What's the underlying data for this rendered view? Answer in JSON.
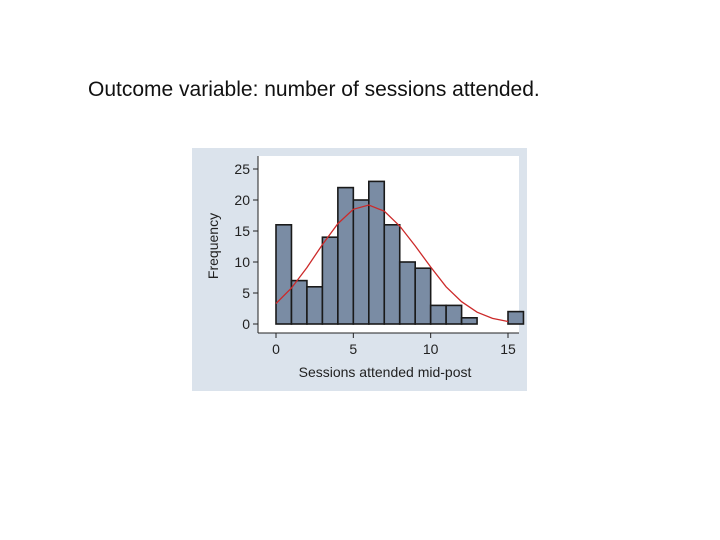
{
  "heading": "Outcome variable: number of sessions attended.",
  "colors": {
    "outer_background": "#dbe3ec",
    "plot_background": "#ffffff",
    "bar_fill": "#7a8ca4",
    "bar_stroke": "#1a1a1a",
    "curve": "#cc2a2a"
  },
  "chart_data": {
    "type": "bar",
    "subtype": "histogram",
    "title": "",
    "xlabel": "Sessions attended mid-post",
    "ylabel": "Frequency",
    "xlim": [
      -1,
      16.5
    ],
    "ylim": [
      0,
      25
    ],
    "xticks": [
      0,
      5,
      10,
      15
    ],
    "yticks": [
      0,
      5,
      10,
      15,
      20,
      25
    ],
    "grid": false,
    "legend": "none",
    "bin_width": 1,
    "bins": [
      {
        "x0": 0,
        "x1": 1,
        "value": 16
      },
      {
        "x0": 1,
        "x1": 2,
        "value": 7
      },
      {
        "x0": 2,
        "x1": 3,
        "value": 6
      },
      {
        "x0": 3,
        "x1": 4,
        "value": 14
      },
      {
        "x0": 4,
        "x1": 5,
        "value": 22
      },
      {
        "x0": 5,
        "x1": 6,
        "value": 20
      },
      {
        "x0": 6,
        "x1": 7,
        "value": 23
      },
      {
        "x0": 7,
        "x1": 8,
        "value": 16
      },
      {
        "x0": 8,
        "x1": 9,
        "value": 10
      },
      {
        "x0": 9,
        "x1": 10,
        "value": 9
      },
      {
        "x0": 10,
        "x1": 11,
        "value": 3
      },
      {
        "x0": 11,
        "x1": 12,
        "value": 3
      },
      {
        "x0": 12,
        "x1": 13,
        "value": 1
      },
      {
        "x0": 13,
        "x1": 14,
        "value": 0
      },
      {
        "x0": 14,
        "x1": 15,
        "value": 0
      },
      {
        "x0": 15,
        "x1": 16,
        "value": 2
      }
    ],
    "normal_curve": {
      "x": [
        0,
        1,
        2,
        3,
        4,
        5,
        6,
        7,
        8,
        9,
        10,
        11,
        12,
        13,
        14,
        15,
        16
      ],
      "y": [
        3.3,
        5.8,
        9.1,
        12.8,
        16.2,
        18.5,
        19.2,
        18.2,
        15.8,
        12.6,
        9.2,
        6.0,
        3.6,
        1.9,
        0.9,
        0.4,
        0.1
      ]
    }
  }
}
